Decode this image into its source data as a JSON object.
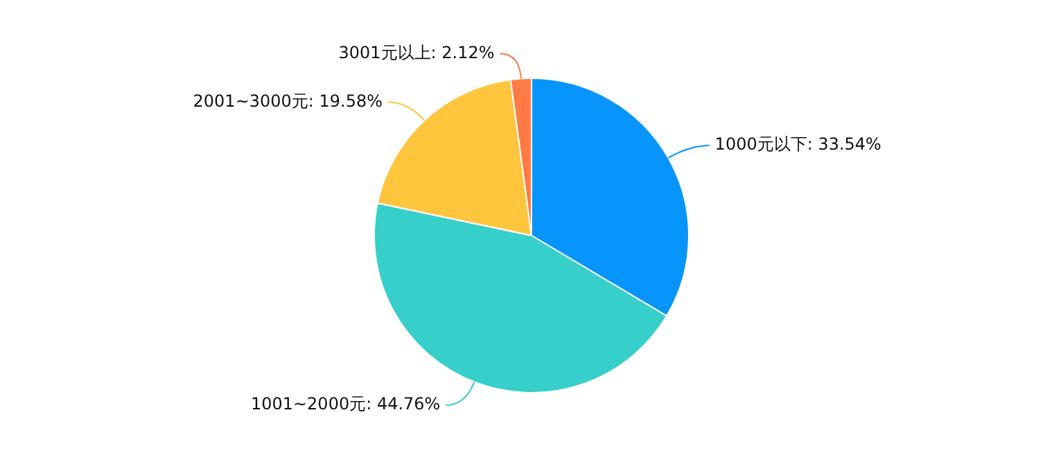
{
  "chart_data": {
    "type": "pie",
    "categories": [
      "1000元以下",
      "1001~2000元",
      "2001~3000元",
      "3001元以上"
    ],
    "values": [
      33.54,
      44.76,
      19.58,
      2.12
    ],
    "value_labels": [
      "33.54%",
      "44.76%",
      "19.58%",
      "2.12%"
    ],
    "colors": [
      "#0795fb",
      "#36cfc9",
      "#ffc53d",
      "#ff7a45"
    ],
    "legend": false
  }
}
